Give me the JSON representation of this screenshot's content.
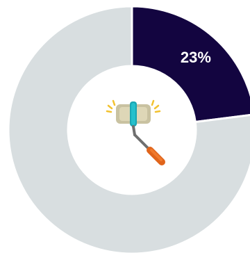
{
  "chart_data": {
    "type": "pie",
    "variant": "donut",
    "slices": [
      {
        "value": 23,
        "label": "23%",
        "color": "#130540"
      },
      {
        "value": 77,
        "label": "",
        "color": "#d8dee0"
      }
    ],
    "start_angle": "top",
    "direction": "clockwise",
    "label_color": "#ffffff",
    "center_icon": "paint-roller-icon",
    "legend": "none"
  }
}
